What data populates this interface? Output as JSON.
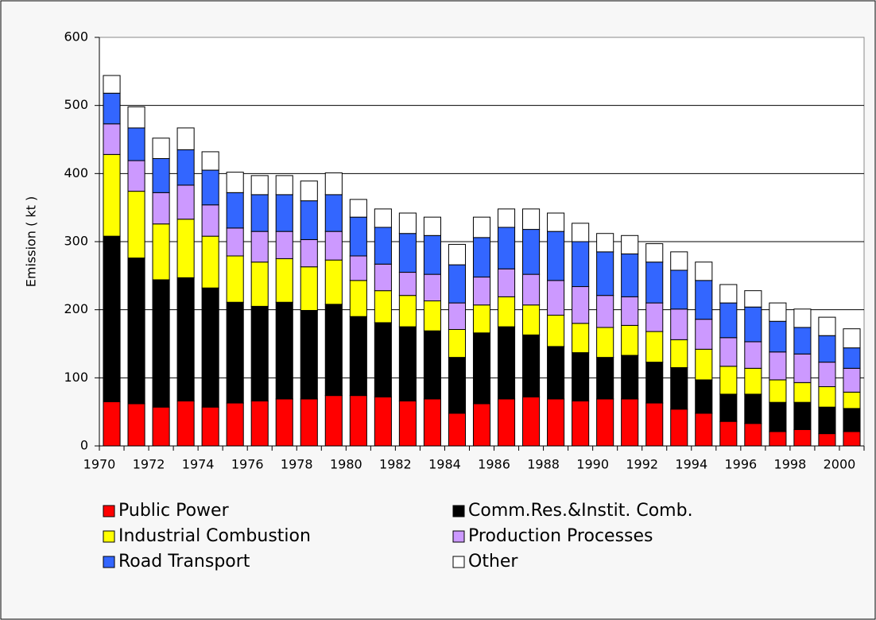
{
  "chart_data": {
    "type": "bar",
    "stacked": true,
    "y_label": "Emission ( kt )",
    "categories": [
      "1970",
      null,
      "1972",
      null,
      "1974",
      null,
      "1976",
      null,
      "1978",
      null,
      "1980",
      null,
      "1982",
      null,
      "1984",
      null,
      "1986",
      null,
      "1988",
      null,
      "1990",
      null,
      "1992",
      null,
      "1994",
      null,
      "1996",
      null,
      "1998",
      null,
      "2000"
    ],
    "ylim": [
      0,
      600
    ],
    "yticks": [
      0,
      100,
      200,
      300,
      400,
      500,
      600
    ],
    "grid": true,
    "series": [
      {
        "name": "Public Power",
        "color": "#ff0000",
        "values": [
          65,
          62,
          57,
          66,
          57,
          63,
          66,
          69,
          69,
          74,
          74,
          72,
          66,
          69,
          48,
          62,
          69,
          72,
          69,
          66,
          69,
          69,
          63,
          54,
          48,
          36,
          33,
          21,
          24,
          18,
          21
        ]
      },
      {
        "name": "Comm.Res.&Instit. Comb.",
        "color": "#000000",
        "values": [
          243,
          214,
          187,
          181,
          175,
          148,
          139,
          142,
          130,
          134,
          116,
          109,
          109,
          100,
          82,
          104,
          106,
          91,
          77,
          71,
          61,
          64,
          60,
          61,
          49,
          40,
          43,
          43,
          40,
          39,
          34
        ]
      },
      {
        "name": "Industrial Combustion",
        "color": "#ffff00",
        "values": [
          120,
          98,
          82,
          86,
          76,
          68,
          65,
          64,
          64,
          65,
          53,
          47,
          46,
          44,
          41,
          41,
          44,
          44,
          46,
          43,
          44,
          44,
          45,
          41,
          45,
          41,
          38,
          33,
          29,
          30,
          24
        ]
      },
      {
        "name": "Production Processes",
        "color": "#cc99ff",
        "values": [
          45,
          45,
          46,
          50,
          46,
          41,
          45,
          40,
          40,
          42,
          36,
          39,
          34,
          39,
          39,
          41,
          41,
          45,
          51,
          54,
          47,
          42,
          42,
          45,
          44,
          42,
          39,
          41,
          42,
          36,
          35
        ]
      },
      {
        "name": "Road Transport",
        "color": "#3366ff",
        "values": [
          45,
          48,
          50,
          52,
          51,
          52,
          54,
          54,
          57,
          54,
          57,
          54,
          57,
          57,
          56,
          58,
          61,
          66,
          72,
          66,
          64,
          63,
          60,
          57,
          57,
          51,
          51,
          45,
          39,
          39,
          30
        ]
      },
      {
        "name": "Other",
        "color": "#ffffff",
        "values": [
          26,
          31,
          30,
          32,
          27,
          30,
          28,
          28,
          29,
          32,
          26,
          27,
          30,
          27,
          30,
          30,
          27,
          30,
          27,
          27,
          27,
          27,
          27,
          27,
          27,
          27,
          24,
          27,
          27,
          27,
          28
        ]
      }
    ]
  }
}
